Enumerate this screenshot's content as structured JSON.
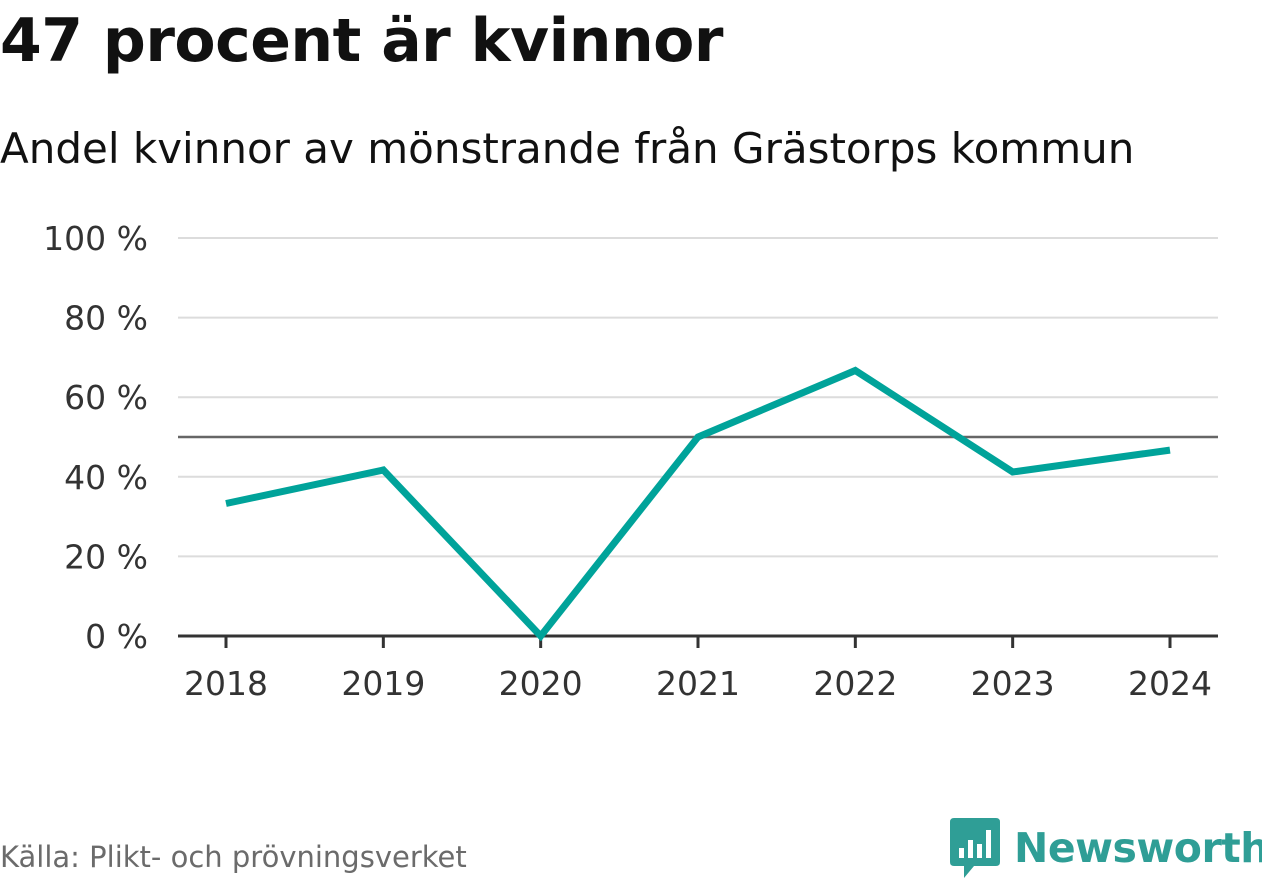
{
  "chart_data": {
    "type": "line",
    "title": "47 procent är kvinnor",
    "subtitle": "Andel kvinnor av mönstrande från Grästorps kommun",
    "categories": [
      "2018",
      "2019",
      "2020",
      "2021",
      "2022",
      "2023",
      "2024"
    ],
    "series": [
      {
        "name": "Andel kvinnor",
        "values": [
          33.3,
          41.7,
          0,
          50,
          66.7,
          41.2,
          46.7
        ],
        "color": "#00a39a"
      }
    ],
    "reference_line": {
      "value": 50,
      "color": "#666666"
    },
    "ylim": [
      0,
      100
    ],
    "yticks": [
      0,
      20,
      40,
      60,
      80,
      100
    ],
    "ytick_suffix": " %",
    "xlabel": "",
    "ylabel": "",
    "grid": true
  },
  "source": "Källa: Plikt- och prövningsverket",
  "brand": {
    "name": "Newsworthy",
    "color": "#2f9e96",
    "icon": "bar-chart-speech-bubble-icon"
  }
}
